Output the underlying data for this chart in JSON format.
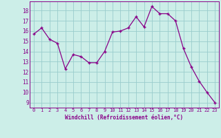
{
  "x": [
    0,
    1,
    2,
    3,
    4,
    5,
    6,
    7,
    8,
    9,
    10,
    11,
    12,
    13,
    14,
    15,
    16,
    17,
    18,
    19,
    20,
    21,
    22,
    23
  ],
  "y": [
    15.7,
    16.3,
    15.2,
    14.8,
    12.3,
    13.7,
    13.5,
    12.9,
    12.9,
    14.0,
    15.9,
    16.0,
    16.3,
    17.4,
    16.4,
    18.4,
    17.7,
    17.7,
    17.0,
    14.3,
    12.5,
    11.1,
    10.0,
    9.0
  ],
  "line_color": "#880088",
  "marker": "+",
  "bg_color": "#cceee8",
  "grid_color": "#99cccc",
  "xlabel": "Windchill (Refroidissement éolien,°C)",
  "ylabel_ticks": [
    9,
    10,
    11,
    12,
    13,
    14,
    15,
    16,
    17,
    18
  ],
  "ylim": [
    8.5,
    18.9
  ],
  "xlim": [
    -0.5,
    23.5
  ],
  "tick_color": "#880088",
  "label_color": "#880088",
  "font": "monospace",
  "xtick_fontsize": 5.0,
  "ytick_fontsize": 5.5,
  "xlabel_fontsize": 5.5
}
